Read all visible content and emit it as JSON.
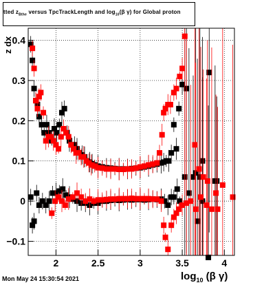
{
  "title_box": {
    "text_start": "tted",
    "text_z": "z",
    "text_z_sub": "Bthe",
    "text_middle": " versus TpcTrackLength and log",
    "text_log_sub": "10",
    "text_end": "(β γ) for Global proton"
  },
  "footer": {
    "timestamp": "Mon May 24 15:30:54 2021"
  },
  "axes": {
    "x_label_main": "log",
    "x_label_sub": "10",
    "x_label_rest": " (β γ)",
    "y_label": "z dx",
    "x_ticks": [
      "2",
      "2.5",
      "3",
      "3.5",
      "4"
    ],
    "y_ticks": [
      "0.4",
      "0.3",
      "0.2",
      "0.1",
      "0",
      "−0.1"
    ]
  },
  "colors": {
    "series_a": "#000000",
    "series_b": "#ff0000",
    "frame": "#000000",
    "grid": "#000000"
  },
  "chart_data": {
    "type": "scatter",
    "xlim": [
      1.67,
      4.12
    ],
    "ylim": [
      -0.135,
      0.43
    ],
    "grid": true,
    "x_ticks": [
      2,
      2.5,
      3,
      3.5,
      4
    ],
    "y_ticks": [
      0.4,
      0.3,
      0.2,
      0.1,
      0,
      -0.1
    ],
    "series": [
      {
        "marker": "square",
        "color": "#000000",
        "points": [
          [
            1.7,
            0.39
          ],
          [
            1.72,
            0.35
          ],
          [
            1.74,
            0.28
          ],
          [
            1.76,
            0.25
          ],
          [
            1.78,
            0.24
          ],
          [
            1.8,
            0.21
          ],
          [
            1.83,
            0.19
          ],
          [
            1.86,
            0.17
          ],
          [
            1.89,
            0.19
          ],
          [
            1.92,
            0.17
          ],
          [
            1.95,
            0.15
          ],
          [
            1.98,
            0.18
          ],
          [
            2.01,
            0.17
          ],
          [
            2.04,
            0.19
          ],
          [
            2.07,
            0.22
          ],
          [
            2.1,
            0.23
          ],
          [
            2.13,
            0.17
          ],
          [
            2.16,
            0.15
          ],
          [
            2.19,
            0.14
          ],
          [
            2.22,
            0.14
          ],
          [
            2.25,
            0.13
          ],
          [
            2.28,
            0.12
          ],
          [
            2.31,
            0.115
          ],
          [
            2.34,
            0.11
          ],
          [
            2.37,
            0.1
          ],
          [
            2.4,
            0.097
          ],
          [
            2.43,
            0.093
          ],
          [
            2.46,
            0.09
          ],
          [
            2.5,
            0.087
          ],
          [
            2.55,
            0.085
          ],
          [
            2.6,
            0.083
          ],
          [
            2.65,
            0.082
          ],
          [
            2.7,
            0.081
          ],
          [
            2.75,
            0.08
          ],
          [
            2.8,
            0.08
          ],
          [
            2.85,
            0.08
          ],
          [
            2.9,
            0.081
          ],
          [
            2.95,
            0.082
          ],
          [
            3.0,
            0.083
          ],
          [
            3.05,
            0.085
          ],
          [
            3.1,
            0.087
          ],
          [
            3.15,
            0.09
          ],
          [
            3.2,
            0.092
          ],
          [
            3.25,
            0.095
          ],
          [
            3.28,
            0.097
          ],
          [
            3.31,
            0.1
          ],
          [
            3.34,
            0.1
          ],
          [
            3.37,
            0.12
          ],
          [
            3.4,
            0.19
          ],
          [
            3.43,
            0.13
          ],
          [
            3.46,
            0.23
          ],
          [
            3.5,
            0.29
          ],
          [
            3.55,
            0.28
          ],
          [
            3.66,
            0.07
          ],
          [
            3.71,
            0.06
          ],
          [
            3.74,
            0.1
          ],
          [
            3.82,
            0.32
          ],
          [
            3.89,
            0.05
          ],
          [
            1.7,
            0.01
          ],
          [
            1.72,
            -0.06
          ],
          [
            1.74,
            -0.05
          ],
          [
            1.77,
            0.02
          ],
          [
            1.8,
            -0.01
          ],
          [
            1.84,
            0.0
          ],
          [
            1.88,
            -0.01
          ],
          [
            1.92,
            0.0
          ],
          [
            1.96,
            0.02
          ],
          [
            2.0,
            0.02
          ],
          [
            2.04,
            0.025
          ],
          [
            2.08,
            0.03
          ],
          [
            2.12,
            0.015
          ],
          [
            2.16,
            0.01
          ],
          [
            2.2,
            0.005
          ],
          [
            2.25,
            0.0
          ],
          [
            2.3,
            -0.005
          ],
          [
            2.35,
            -0.005
          ],
          [
            2.4,
            -0.01
          ],
          [
            2.45,
            -0.005
          ],
          [
            2.5,
            -0.005
          ],
          [
            2.55,
            0.0
          ],
          [
            2.6,
            0.0
          ],
          [
            2.65,
            0.002
          ],
          [
            2.7,
            0.003
          ],
          [
            2.75,
            0.002
          ],
          [
            2.8,
            0.003
          ],
          [
            2.85,
            0.004
          ],
          [
            2.9,
            0.003
          ],
          [
            2.95,
            0.004
          ],
          [
            3.0,
            0.004
          ],
          [
            3.05,
            0.003
          ],
          [
            3.1,
            0.004
          ],
          [
            3.15,
            0.005
          ],
          [
            3.2,
            0.004
          ],
          [
            3.25,
            0.005
          ],
          [
            3.29,
            0.0
          ],
          [
            3.33,
            -0.01
          ],
          [
            3.37,
            0.01
          ],
          [
            3.4,
            0.01
          ],
          [
            3.44,
            0.03
          ],
          [
            3.47,
            0.0
          ],
          [
            3.53,
            0.06
          ],
          [
            3.58,
            0.02
          ],
          [
            3.63,
            0.06
          ],
          [
            3.68,
            -0.05
          ],
          [
            3.74,
            0.0
          ],
          [
            3.81,
            -0.14
          ],
          [
            3.91,
            0.05
          ]
        ]
      },
      {
        "marker": "square",
        "color": "#ff0000",
        "points": [
          [
            1.72,
            0.38
          ],
          [
            1.74,
            0.33
          ],
          [
            1.76,
            0.25
          ],
          [
            1.78,
            0.23
          ],
          [
            1.8,
            0.26
          ],
          [
            1.82,
            0.27
          ],
          [
            1.85,
            0.22
          ],
          [
            1.88,
            0.15
          ],
          [
            1.91,
            0.16
          ],
          [
            1.94,
            0.16
          ],
          [
            1.97,
            0.15
          ],
          [
            2.0,
            0.14
          ],
          [
            2.03,
            0.13
          ],
          [
            2.06,
            0.16
          ],
          [
            2.09,
            0.18
          ],
          [
            2.12,
            0.17
          ],
          [
            2.15,
            0.16
          ],
          [
            2.18,
            0.14
          ],
          [
            2.21,
            0.13
          ],
          [
            2.24,
            0.12
          ],
          [
            2.27,
            0.12
          ],
          [
            2.3,
            0.11
          ],
          [
            2.33,
            0.11
          ],
          [
            2.36,
            0.1
          ],
          [
            2.39,
            0.095
          ],
          [
            2.42,
            0.09
          ],
          [
            2.46,
            0.087
          ],
          [
            2.5,
            0.083
          ],
          [
            2.55,
            0.082
          ],
          [
            2.6,
            0.08
          ],
          [
            2.65,
            0.08
          ],
          [
            2.7,
            0.08
          ],
          [
            2.75,
            0.079
          ],
          [
            2.8,
            0.079
          ],
          [
            2.85,
            0.08
          ],
          [
            2.9,
            0.08
          ],
          [
            2.95,
            0.082
          ],
          [
            3.0,
            0.085
          ],
          [
            3.05,
            0.087
          ],
          [
            3.1,
            0.09
          ],
          [
            3.15,
            0.092
          ],
          [
            3.2,
            0.095
          ],
          [
            3.23,
            0.12
          ],
          [
            3.26,
            0.165
          ],
          [
            3.28,
            0.22
          ],
          [
            3.3,
            0.23
          ],
          [
            3.33,
            0.24
          ],
          [
            3.36,
            0.24
          ],
          [
            3.4,
            0.27
          ],
          [
            3.43,
            0.28
          ],
          [
            3.47,
            0.31
          ],
          [
            3.5,
            0.33
          ],
          [
            3.53,
            0.41
          ],
          [
            3.65,
            0.14
          ],
          [
            3.7,
            0.08
          ],
          [
            3.75,
            0.06
          ],
          [
            3.8,
            0.05
          ],
          [
            3.9,
            0.02
          ],
          [
            3.98,
            0.04
          ],
          [
            4.1,
            0.01
          ],
          [
            1.95,
            -0.03
          ],
          [
            1.99,
            0.0
          ],
          [
            2.03,
            0.01
          ],
          [
            2.07,
            0.0
          ],
          [
            2.11,
            -0.01
          ],
          [
            2.15,
            0.005
          ],
          [
            2.2,
            0.01
          ],
          [
            2.25,
            0.02
          ],
          [
            2.3,
            0.01
          ],
          [
            2.35,
            0.0
          ],
          [
            2.4,
            0.005
          ],
          [
            2.45,
            0.0
          ],
          [
            2.5,
            0.003
          ],
          [
            2.55,
            0.003
          ],
          [
            2.6,
            0.004
          ],
          [
            2.65,
            0.005
          ],
          [
            2.7,
            0.005
          ],
          [
            2.75,
            0.006
          ],
          [
            2.8,
            0.006
          ],
          [
            2.85,
            0.006
          ],
          [
            2.9,
            0.007
          ],
          [
            2.95,
            0.006
          ],
          [
            3.0,
            0.006
          ],
          [
            3.05,
            0.006
          ],
          [
            3.1,
            0.006
          ],
          [
            3.15,
            0.005
          ],
          [
            3.2,
            0.005
          ],
          [
            3.25,
            0.0
          ],
          [
            3.28,
            -0.06
          ],
          [
            3.3,
            -0.09
          ],
          [
            3.33,
            -0.12
          ],
          [
            3.37,
            -0.06
          ],
          [
            3.4,
            -0.04
          ],
          [
            3.43,
            -0.03
          ],
          [
            3.46,
            -0.02
          ],
          [
            3.5,
            -0.01
          ],
          [
            3.55,
            -0.005
          ],
          [
            3.6,
            0.0
          ],
          [
            3.66,
            -0.02
          ],
          [
            3.72,
            0.01
          ],
          [
            3.79,
            -0.01
          ],
          [
            3.85,
            -0.02
          ],
          [
            3.92,
            -0.02
          ]
        ]
      }
    ]
  }
}
